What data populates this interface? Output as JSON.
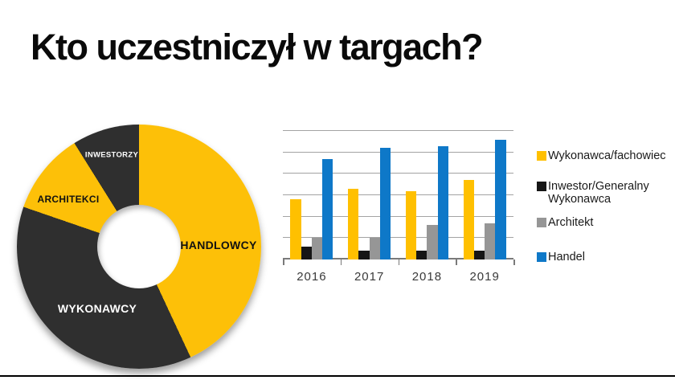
{
  "slide": {
    "title": "Kto uczestniczył w targach?"
  },
  "colors": {
    "background": "#ffffff",
    "title_text": "#0a0a0a",
    "accent_yellow": "#FDC008",
    "accent_dark": "#2F2F2F",
    "bar_yellow": "#FFC000",
    "bar_black": "#161616",
    "bar_gray": "#969696",
    "bar_blue": "#0E78C8",
    "gridline": "#a3a3a3",
    "axis_line": "#7a7a7a",
    "footer_rule": "#000000"
  },
  "chart_data": [
    {
      "type": "pie",
      "subtype": "donut",
      "rotation": "clockwise from 12 o'clock",
      "legend_position": "none (labels drawn on slices)",
      "segments": [
        {
          "label": "HANDLOWCY",
          "percent": 43,
          "start_deg": 0,
          "end_deg": 155,
          "color": "#FDC008",
          "label_color": "#111111"
        },
        {
          "label": "WYKONAWCY",
          "percent": 37,
          "start_deg": 155,
          "end_deg": 289,
          "color": "#2F2F2F",
          "label_color": "#ffffff"
        },
        {
          "label": "ARCHITEKCI",
          "percent": 11,
          "start_deg": 289,
          "end_deg": 328,
          "color": "#FDC008",
          "label_color": "#111111"
        },
        {
          "label": "INWESTORZY",
          "percent": 9,
          "start_deg": 328,
          "end_deg": 360,
          "color": "#2F2F2F",
          "label_color": "#ffffff"
        }
      ]
    },
    {
      "type": "bar",
      "categories": [
        "2016",
        "2017",
        "2018",
        "2019"
      ],
      "series": [
        {
          "key": "wykonawca-fachowiec",
          "name": "Wykonawca/fachowiec",
          "legend_lines": [
            "Wykonawca/fachowiec"
          ],
          "color": "#FFC000",
          "values": [
            28,
            33,
            32,
            37
          ]
        },
        {
          "key": "inwestor-gw",
          "name": "Inwestor/Generalny Wykonawca",
          "legend_lines": [
            "Inwestor/Generalny",
            "Wykonawca"
          ],
          "color": "#161616",
          "values": [
            6,
            4,
            4,
            4
          ]
        },
        {
          "key": "architekt",
          "name": "Architekt",
          "legend_lines": [
            "Architekt"
          ],
          "color": "#969696",
          "values": [
            10,
            10,
            16,
            17
          ]
        },
        {
          "key": "handel",
          "name": "Handel",
          "legend_lines": [
            "Handel"
          ],
          "color": "#0E78C8",
          "values": [
            47,
            52,
            53,
            56
          ]
        }
      ],
      "ylim": [
        0,
        60
      ],
      "gridline_step": 10,
      "grid": true,
      "y_axis_labels_visible": false,
      "units_note": "no y-axis tick labels shown; values estimated from gridlines (1 gridline interval = 10)",
      "legend_position": "right"
    }
  ]
}
